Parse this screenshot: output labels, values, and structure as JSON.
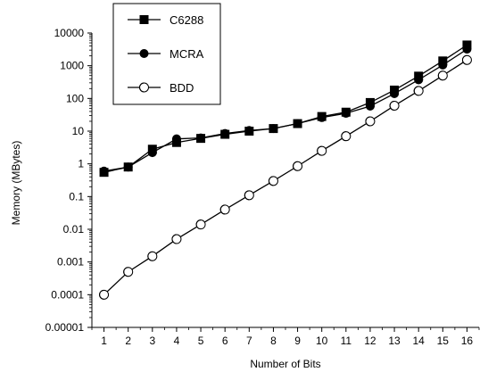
{
  "chart_data": {
    "type": "line",
    "title": "",
    "xlabel": "Number of Bits",
    "ylabel": "Memory (MBytes)",
    "x_scale": "linear",
    "y_scale": "log",
    "xlim": [
      0.5,
      16.5
    ],
    "ylim": [
      1e-05,
      10000
    ],
    "x_ticks": [
      "1",
      "2",
      "3",
      "4",
      "5",
      "6",
      "7",
      "8",
      "9",
      "10",
      "11",
      "12",
      "13",
      "14",
      "15",
      "16"
    ],
    "y_ticks": [
      "10000",
      "1000",
      "100",
      "10",
      "1",
      "0.1",
      "0.01",
      "0.001",
      "0.0001",
      "0.00001"
    ],
    "grid": false,
    "legend_position": "top-left",
    "x": [
      1,
      2,
      3,
      4,
      5,
      6,
      7,
      8,
      9,
      10,
      11,
      12,
      13,
      14,
      15,
      16
    ],
    "series": [
      {
        "name": "C6288",
        "marker": "filled-square",
        "values": [
          0.55,
          0.8,
          2.8,
          4.5,
          6,
          8,
          10,
          12,
          17,
          28,
          38,
          75,
          180,
          480,
          1400,
          4300
        ]
      },
      {
        "name": "MCRA",
        "marker": "filled-circle",
        "values": [
          0.6,
          0.8,
          2.2,
          5.8,
          6.2,
          8.5,
          10.5,
          12,
          17,
          26,
          35,
          58,
          140,
          370,
          1050,
          3200
        ]
      },
      {
        "name": "BDD",
        "marker": "open-circle",
        "values": [
          0.0001,
          0.0005,
          0.0015,
          0.005,
          0.014,
          0.04,
          0.11,
          0.3,
          0.85,
          2.5,
          7,
          20,
          60,
          170,
          500,
          1500
        ]
      }
    ],
    "colors": {
      "line": "#000000",
      "background": "#ffffff"
    }
  }
}
